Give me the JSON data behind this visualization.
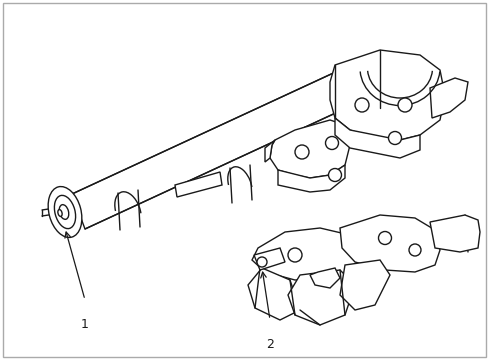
{
  "background_color": "#ffffff",
  "line_color": "#1a1a1a",
  "line_width": 1.0,
  "label1": "1",
  "label2": "2",
  "border_color": "#aaaaaa",
  "font_size": 9,
  "figsize": [
    4.89,
    3.6
  ],
  "dpi": 100
}
